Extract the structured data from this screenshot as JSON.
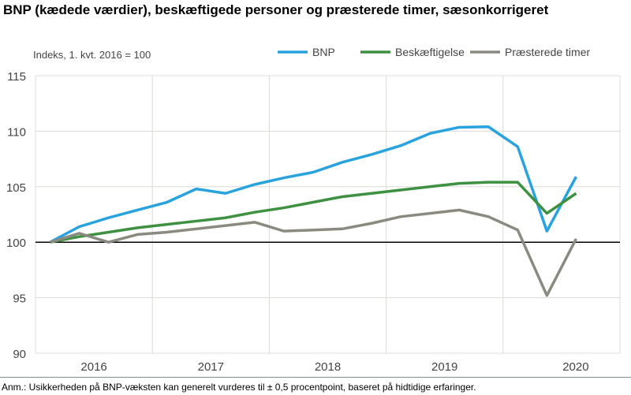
{
  "chart_data": {
    "type": "line",
    "title": "BNP (kædede værdier), beskæftigede personer og præsterede timer, sæsonkorrigeret",
    "ylabel": "Indeks, 1. kvt. 2016  = 100",
    "xlabel": "",
    "ylim": [
      90,
      115
    ],
    "yticks": [
      "90",
      "95",
      "100",
      "105",
      "110",
      "115"
    ],
    "year_labels": [
      "2016",
      "2017",
      "2018",
      "2019",
      "2020"
    ],
    "x": [
      "2016K1",
      "2016K2",
      "2016K3",
      "2016K4",
      "2017K1",
      "2017K2",
      "2017K3",
      "2017K4",
      "2018K1",
      "2018K2",
      "2018K3",
      "2018K4",
      "2019K1",
      "2019K2",
      "2019K3",
      "2019K4",
      "2020K1",
      "2020K2",
      "2020K3"
    ],
    "grid": true,
    "reference_line": 100,
    "legend_position": "top-right",
    "series": [
      {
        "name": "BNP",
        "color": "#29a3dd",
        "values": [
          100,
          101.4,
          102.2,
          102.9,
          103.6,
          104.8,
          104.4,
          105.2,
          105.8,
          106.3,
          107.2,
          107.9,
          108.7,
          109.8,
          110.35,
          110.4,
          108.6,
          101.0,
          105.9
        ]
      },
      {
        "name": "Beskæftigelse",
        "color": "#3d9140",
        "values": [
          100,
          100.5,
          100.9,
          101.3,
          101.6,
          101.9,
          102.2,
          102.7,
          103.1,
          103.6,
          104.1,
          104.4,
          104.7,
          105.0,
          105.3,
          105.4,
          105.4,
          102.6,
          104.4
        ]
      },
      {
        "name": "Præsterede timer",
        "color": "#8b8a80",
        "values": [
          100,
          100.8,
          100.0,
          100.7,
          100.9,
          101.2,
          101.5,
          101.8,
          101.0,
          101.1,
          101.2,
          101.7,
          102.3,
          102.6,
          102.9,
          102.3,
          101.1,
          95.2,
          100.3
        ]
      }
    ]
  },
  "note": "Anm.: Usikkerheden på BNP-væksten kan generelt vurderes til ± 0,5 procentpoint, baseret på hidtidige erfaringer."
}
